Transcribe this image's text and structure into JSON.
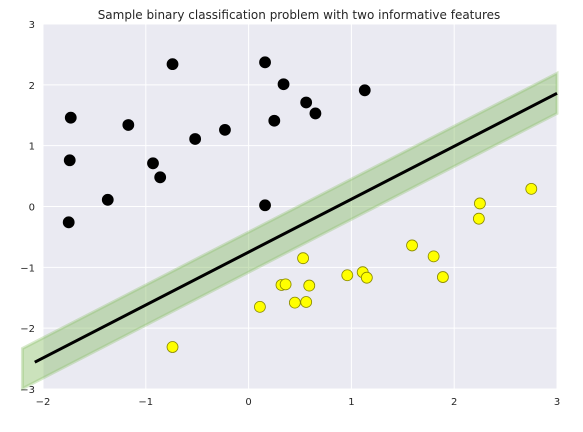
{
  "chart_data": {
    "type": "scatter",
    "title": "Sample binary classification problem with two informative features",
    "xlabel": "",
    "ylabel": "",
    "xlim": [
      -2,
      3
    ],
    "ylim": [
      -3,
      3
    ],
    "x_ticks": [
      "−2",
      "−1",
      "0",
      "1",
      "2",
      "3"
    ],
    "y_ticks": [
      "3",
      "2",
      "1",
      "0",
      "−1",
      "−2",
      "−3"
    ],
    "grid": true,
    "background_color": "#EAEAF2",
    "decision_line": {
      "slope": 0.87,
      "intercept": -0.75,
      "color": "#000000"
    },
    "margin_band": {
      "half_width": 0.33,
      "color": "#8CBF6A"
    },
    "series": [
      {
        "color": "#000000",
        "points": [
          [
            -1.73,
            1.46
          ],
          [
            -1.74,
            0.76
          ],
          [
            -1.75,
            -0.26
          ],
          [
            -1.37,
            0.11
          ],
          [
            -1.17,
            1.34
          ],
          [
            -0.93,
            0.71
          ],
          [
            -0.86,
            0.48
          ],
          [
            -0.74,
            2.34
          ],
          [
            -0.52,
            1.11
          ],
          [
            -0.23,
            1.26
          ],
          [
            0.16,
            2.37
          ],
          [
            0.25,
            1.41
          ],
          [
            0.34,
            2.01
          ],
          [
            0.56,
            1.71
          ],
          [
            0.65,
            1.53
          ],
          [
            1.13,
            1.91
          ],
          [
            0.16,
            0.02
          ]
        ]
      },
      {
        "color": "#FFFF00",
        "points": [
          [
            -0.74,
            -2.31
          ],
          [
            0.11,
            -1.65
          ],
          [
            0.32,
            -1.29
          ],
          [
            0.36,
            -1.28
          ],
          [
            0.45,
            -1.58
          ],
          [
            0.53,
            -0.85
          ],
          [
            0.56,
            -1.57
          ],
          [
            0.59,
            -1.3
          ],
          [
            0.96,
            -1.13
          ],
          [
            1.11,
            -1.08
          ],
          [
            1.15,
            -1.17
          ],
          [
            1.59,
            -0.64
          ],
          [
            1.8,
            -0.82
          ],
          [
            1.89,
            -1.16
          ],
          [
            2.24,
            -0.2
          ],
          [
            2.25,
            0.05
          ],
          [
            2.75,
            0.29
          ]
        ]
      }
    ]
  }
}
